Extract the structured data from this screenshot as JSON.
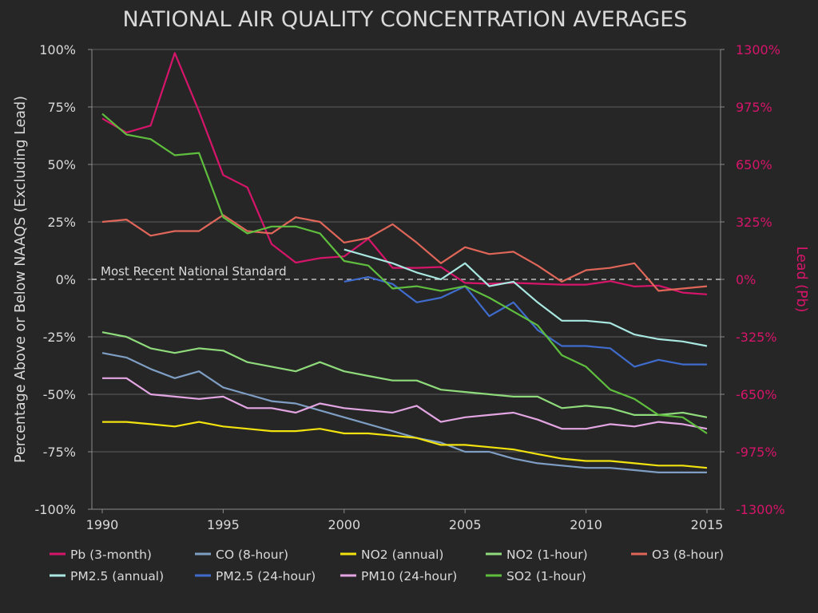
{
  "chart_data": {
    "type": "line",
    "title": "NATIONAL AIR QUALITY CONCENTRATION AVERAGES",
    "ylabel": "Percentage Above or Below NAAQS (Excluding Lead)",
    "y2label": "Lead (Pb)",
    "reference_label": "Most Recent National Standard",
    "xlim": [
      1990,
      2015
    ],
    "ylim": [
      -100,
      100
    ],
    "y2lim": [
      -1300,
      1300
    ],
    "x_ticks": [
      1990,
      1995,
      2000,
      2005,
      2010,
      2015
    ],
    "y_ticks": [
      "-100%",
      "-75%",
      "-50%",
      "-25%",
      "0%",
      "25%",
      "50%",
      "75%",
      "100%"
    ],
    "y_tick_values": [
      -100,
      -75,
      -50,
      -25,
      0,
      25,
      50,
      75,
      100
    ],
    "y2_ticks": [
      "-1300%",
      "-975%",
      "-650%",
      "-325%",
      "0%",
      "325%",
      "650%",
      "975%",
      "1300%"
    ],
    "y2_tick_values": [
      -1300,
      -975,
      -650,
      -325,
      0,
      325,
      650,
      975,
      1300
    ],
    "grid": "horizontal",
    "legend_position": "bottom",
    "colors": {
      "background": "#262626",
      "text": "#d9d9d9",
      "grid": "#5e5e5e",
      "secondary_axis": "#d6156a",
      "reference_line": "#bfbfbf"
    },
    "series": [
      {
        "name": "Pb (3-month)",
        "color": "#d6156a",
        "axis": "right",
        "x": [
          1990,
          1991,
          1992,
          1993,
          1994,
          1995,
          1996,
          1997,
          1998,
          1999,
          2000,
          2001,
          2002,
          2003,
          2004,
          2005,
          2006,
          2007,
          2008,
          2009,
          2010,
          2011,
          2012,
          2013,
          2014,
          2015
        ],
        "y": [
          910,
          830,
          870,
          1280,
          950,
          590,
          520,
          200,
          95,
          120,
          130,
          230,
          65,
          65,
          70,
          -20,
          -25,
          -20,
          -25,
          -30,
          -30,
          -10,
          -40,
          -35,
          -75,
          -85
        ]
      },
      {
        "name": "CO (8-hour)",
        "color": "#7f9ec4",
        "axis": "left",
        "x": [
          1990,
          1991,
          1992,
          1993,
          1994,
          1995,
          1996,
          1997,
          1998,
          1999,
          2000,
          2001,
          2002,
          2003,
          2004,
          2005,
          2006,
          2007,
          2008,
          2009,
          2010,
          2011,
          2012,
          2013,
          2014,
          2015
        ],
        "y": [
          -32,
          -34,
          -39,
          -43,
          -40,
          -47,
          -50,
          -53,
          -54,
          -57,
          -60,
          -63,
          -66,
          -69,
          -71,
          -75,
          -75,
          -78,
          -80,
          -81,
          -82,
          -82,
          -83,
          -84,
          -84,
          -84
        ]
      },
      {
        "name": "NO2 (annual)",
        "color": "#f2e30f",
        "axis": "left",
        "x": [
          1990,
          1991,
          1992,
          1993,
          1994,
          1995,
          1996,
          1997,
          1998,
          1999,
          2000,
          2001,
          2002,
          2003,
          2004,
          2005,
          2006,
          2007,
          2008,
          2009,
          2010,
          2011,
          2012,
          2013,
          2014,
          2015
        ],
        "y": [
          -62,
          -62,
          -63,
          -64,
          -62,
          -64,
          -65,
          -66,
          -66,
          -65,
          -67,
          -67,
          -68,
          -69,
          -72,
          -72,
          -73,
          -74,
          -76,
          -78,
          -79,
          -79,
          -80,
          -81,
          -81,
          -82
        ]
      },
      {
        "name": "NO2 (1-hour)",
        "color": "#8fdb7c",
        "axis": "left",
        "x": [
          1990,
          1991,
          1992,
          1993,
          1994,
          1995,
          1996,
          1997,
          1998,
          1999,
          2000,
          2001,
          2002,
          2003,
          2004,
          2005,
          2006,
          2007,
          2008,
          2009,
          2010,
          2011,
          2012,
          2013,
          2014,
          2015
        ],
        "y": [
          -23,
          -25,
          -30,
          -32,
          -30,
          -31,
          -36,
          -38,
          -40,
          -36,
          -40,
          -42,
          -44,
          -44,
          -48,
          -49,
          -50,
          -51,
          -51,
          -56,
          -55,
          -56,
          -59,
          -59,
          -58,
          -60
        ]
      },
      {
        "name": "O3 (8-hour)",
        "color": "#df6658",
        "axis": "left",
        "x": [
          1990,
          1991,
          1992,
          1993,
          1994,
          1995,
          1996,
          1997,
          1998,
          1999,
          2000,
          2001,
          2002,
          2003,
          2004,
          2005,
          2006,
          2007,
          2008,
          2009,
          2010,
          2011,
          2012,
          2013,
          2014,
          2015
        ],
        "y": [
          25,
          26,
          19,
          21,
          21,
          28,
          21,
          20,
          27,
          25,
          16,
          18,
          24,
          16,
          7,
          14,
          11,
          12,
          6,
          -1,
          4,
          5,
          7,
          -5,
          -4,
          -3
        ]
      },
      {
        "name": "PM2.5 (annual)",
        "color": "#a9e7e1",
        "axis": "left",
        "x": [
          2000,
          2001,
          2002,
          2003,
          2004,
          2005,
          2006,
          2007,
          2008,
          2009,
          2010,
          2011,
          2012,
          2013,
          2014,
          2015
        ],
        "y": [
          13,
          10,
          7,
          3,
          0,
          7,
          -3,
          -1,
          -10,
          -18,
          -18,
          -19,
          -24,
          -26,
          -27,
          -29
        ]
      },
      {
        "name": "PM2.5 (24-hour)",
        "color": "#3f6ccc",
        "axis": "left",
        "x": [
          2000,
          2001,
          2002,
          2003,
          2004,
          2005,
          2006,
          2007,
          2008,
          2009,
          2010,
          2011,
          2012,
          2013,
          2014,
          2015
        ],
        "y": [
          -1,
          1,
          -2,
          -10,
          -8,
          -3,
          -16,
          -10,
          -22,
          -29,
          -29,
          -30,
          -38,
          -35,
          -37,
          -37
        ]
      },
      {
        "name": "PM10 (24-hour)",
        "color": "#e3a6e3",
        "axis": "left",
        "x": [
          1990,
          1991,
          1992,
          1993,
          1994,
          1995,
          1996,
          1997,
          1998,
          1999,
          2000,
          2001,
          2002,
          2003,
          2004,
          2005,
          2006,
          2007,
          2008,
          2009,
          2010,
          2011,
          2012,
          2013,
          2014,
          2015
        ],
        "y": [
          -43,
          -43,
          -50,
          -51,
          -52,
          -51,
          -56,
          -56,
          -58,
          -54,
          -56,
          -57,
          -58,
          -55,
          -62,
          -60,
          -59,
          -58,
          -61,
          -65,
          -65,
          -63,
          -64,
          -62,
          -63,
          -65
        ]
      },
      {
        "name": "SO2 (1-hour)",
        "color": "#5fbe3e",
        "axis": "left",
        "x": [
          1990,
          1991,
          1992,
          1993,
          1994,
          1995,
          1996,
          1997,
          1998,
          1999,
          2000,
          2001,
          2002,
          2003,
          2004,
          2005,
          2006,
          2007,
          2008,
          2009,
          2010,
          2011,
          2012,
          2013,
          2014,
          2015
        ],
        "y": [
          72,
          63,
          61,
          54,
          55,
          27,
          20,
          23,
          23,
          20,
          8,
          6,
          -4,
          -3,
          -5,
          -3,
          -8,
          -14,
          -20,
          -33,
          -38,
          -48,
          -52,
          -59,
          -60,
          -67
        ]
      }
    ]
  }
}
